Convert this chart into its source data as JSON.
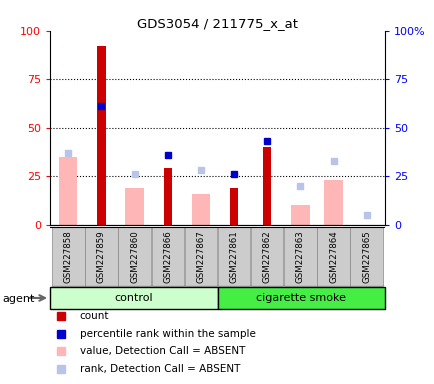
{
  "title": "GDS3054 / 211775_x_at",
  "samples": [
    "GSM227858",
    "GSM227859",
    "GSM227860",
    "GSM227866",
    "GSM227867",
    "GSM227861",
    "GSM227862",
    "GSM227863",
    "GSM227864",
    "GSM227865"
  ],
  "n_control": 5,
  "n_smoke": 5,
  "count": [
    0,
    92,
    0,
    29,
    0,
    19,
    40,
    0,
    0,
    0
  ],
  "rank": [
    0,
    61,
    0,
    36,
    0,
    26,
    43,
    0,
    0,
    0
  ],
  "value_absent": [
    35,
    0,
    19,
    0,
    16,
    0,
    0,
    10,
    23,
    0
  ],
  "rank_absent": [
    37,
    0,
    26,
    0,
    28,
    0,
    0,
    20,
    33,
    5
  ],
  "ylim": [
    0,
    100
  ],
  "yticks": [
    0,
    25,
    50,
    75,
    100
  ],
  "color_count": "#CC0000",
  "color_rank": "#0000CC",
  "color_value_absent": "#FFB6B6",
  "color_rank_absent": "#B8C4E8",
  "color_control_bg": "#CCFFCC",
  "color_smoke_bg": "#44EE44",
  "color_xticklabel_bg": "#CCCCCC",
  "figsize": [
    4.35,
    3.84
  ],
  "dpi": 100
}
